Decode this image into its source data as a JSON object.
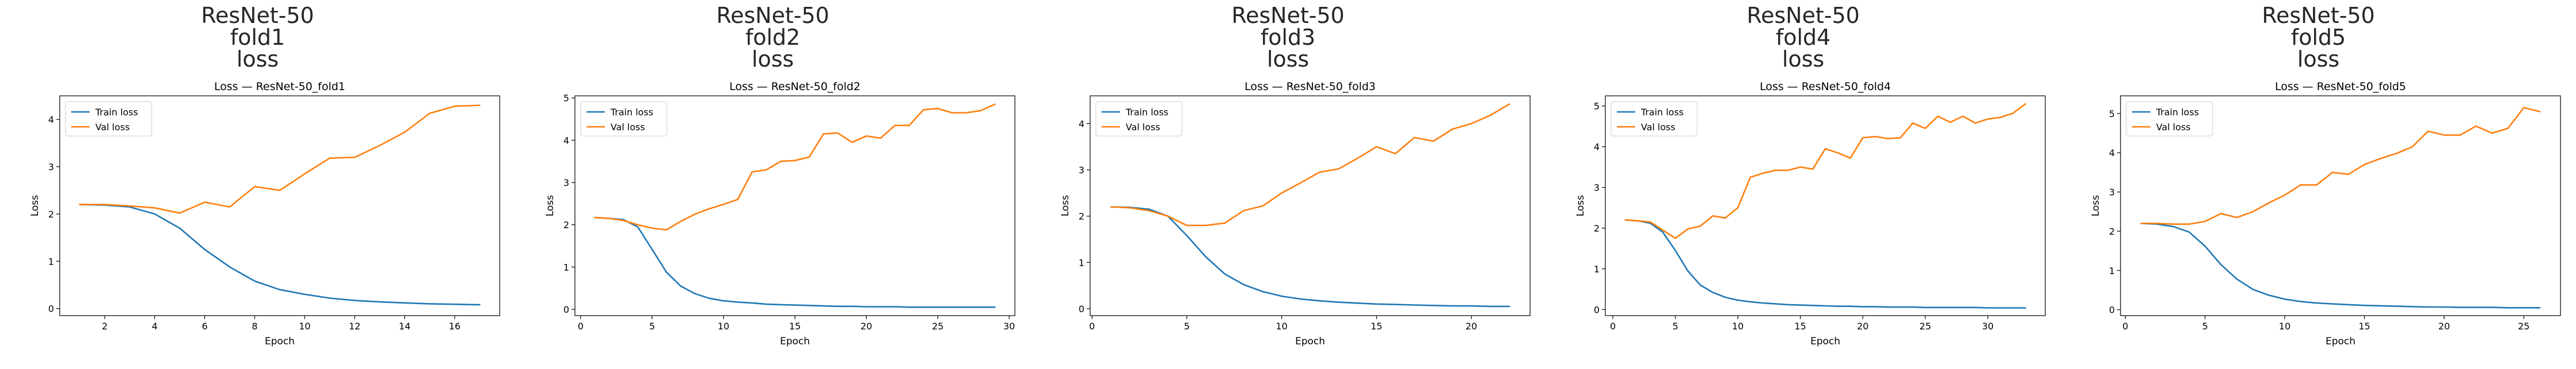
{
  "colors": {
    "train": "#1f77b4",
    "val": "#ff7f0e"
  },
  "chart_data": [
    {
      "type": "line",
      "suptitle": [
        "ResNet-50",
        "fold1",
        "loss"
      ],
      "title": "Loss — ResNet-50_fold1",
      "xlabel": "Epoch",
      "ylabel": "Loss",
      "xlim": [
        0.2,
        17.8
      ],
      "ylim": [
        -0.15,
        4.5
      ],
      "xticks": [
        2,
        4,
        6,
        8,
        10,
        12,
        14,
        16
      ],
      "yticks": [
        0,
        1,
        2,
        3,
        4
      ],
      "legend": "upper left",
      "series": [
        {
          "name": "Train loss",
          "color": "#1f77b4",
          "x": [
            1,
            2,
            3,
            4,
            5,
            6,
            7,
            8,
            9,
            10,
            11,
            12,
            13,
            14,
            15,
            16,
            17
          ],
          "y": [
            2.2,
            2.19,
            2.15,
            2.0,
            1.7,
            1.25,
            0.88,
            0.58,
            0.4,
            0.3,
            0.22,
            0.17,
            0.14,
            0.12,
            0.1,
            0.09,
            0.08
          ]
        },
        {
          "name": "Val loss",
          "color": "#ff7f0e",
          "x": [
            1,
            2,
            3,
            4,
            5,
            6,
            7,
            8,
            9,
            10,
            11,
            12,
            13,
            14,
            15,
            16,
            17
          ],
          "y": [
            2.2,
            2.2,
            2.17,
            2.13,
            2.02,
            2.25,
            2.15,
            2.58,
            2.5,
            2.85,
            3.18,
            3.2,
            3.45,
            3.73,
            4.13,
            4.28,
            4.3
          ]
        }
      ]
    },
    {
      "type": "line",
      "suptitle": [
        "ResNet-50",
        "fold2",
        "loss"
      ],
      "title": "Loss — ResNet-50_fold2",
      "xlabel": "Epoch",
      "ylabel": "Loss",
      "xlim": [
        -0.4,
        30.4
      ],
      "ylim": [
        -0.15,
        5.05
      ],
      "xticks": [
        0,
        5,
        10,
        15,
        20,
        25,
        30
      ],
      "yticks": [
        0,
        1,
        2,
        3,
        4,
        5
      ],
      "legend": "upper left",
      "series": [
        {
          "name": "Train loss",
          "color": "#1f77b4",
          "x": [
            1,
            2,
            3,
            4,
            5,
            6,
            7,
            8,
            9,
            10,
            11,
            12,
            13,
            14,
            15,
            16,
            17,
            18,
            19,
            20,
            21,
            22,
            23,
            24,
            25,
            26,
            27,
            28,
            29
          ],
          "y": [
            2.17,
            2.15,
            2.12,
            1.95,
            1.42,
            0.88,
            0.55,
            0.37,
            0.26,
            0.2,
            0.17,
            0.15,
            0.12,
            0.11,
            0.1,
            0.09,
            0.08,
            0.07,
            0.07,
            0.06,
            0.06,
            0.06,
            0.05,
            0.05,
            0.05,
            0.05,
            0.05,
            0.05,
            0.05
          ]
        },
        {
          "name": "Val loss",
          "color": "#ff7f0e",
          "x": [
            1,
            2,
            3,
            4,
            5,
            6,
            7,
            8,
            9,
            10,
            11,
            12,
            13,
            14,
            15,
            16,
            17,
            18,
            19,
            20,
            21,
            22,
            23,
            24,
            25,
            26,
            27,
            28,
            29
          ],
          "y": [
            2.17,
            2.15,
            2.1,
            2.0,
            1.92,
            1.88,
            2.08,
            2.25,
            2.38,
            2.48,
            2.6,
            3.25,
            3.3,
            3.5,
            3.52,
            3.6,
            4.15,
            4.17,
            3.95,
            4.1,
            4.05,
            4.35,
            4.35,
            4.72,
            4.75,
            4.65,
            4.65,
            4.7,
            4.85
          ]
        }
      ]
    },
    {
      "type": "line",
      "suptitle": [
        "ResNet-50",
        "fold3",
        "loss"
      ],
      "title": "Loss — ResNet-50_fold3",
      "xlabel": "Epoch",
      "ylabel": "Loss",
      "xlim": [
        -0.1,
        23.1
      ],
      "ylim": [
        -0.15,
        4.6
      ],
      "xticks": [
        0,
        5,
        10,
        15,
        20
      ],
      "yticks": [
        0,
        1,
        2,
        3,
        4
      ],
      "legend": "upper left",
      "series": [
        {
          "name": "Train loss",
          "color": "#1f77b4",
          "x": [
            1,
            2,
            3,
            4,
            5,
            6,
            7,
            8,
            9,
            10,
            11,
            12,
            13,
            14,
            15,
            16,
            17,
            18,
            19,
            20,
            21,
            22
          ],
          "y": [
            2.2,
            2.19,
            2.15,
            2.0,
            1.58,
            1.12,
            0.75,
            0.52,
            0.37,
            0.27,
            0.21,
            0.17,
            0.14,
            0.12,
            0.1,
            0.09,
            0.08,
            0.07,
            0.06,
            0.06,
            0.05,
            0.05
          ]
        },
        {
          "name": "Val loss",
          "color": "#ff7f0e",
          "x": [
            1,
            2,
            3,
            4,
            5,
            6,
            7,
            8,
            9,
            10,
            11,
            12,
            13,
            14,
            15,
            16,
            17,
            18,
            19,
            20,
            21,
            22
          ],
          "y": [
            2.2,
            2.18,
            2.12,
            2.0,
            1.8,
            1.8,
            1.85,
            2.12,
            2.22,
            2.5,
            2.72,
            2.95,
            3.02,
            3.25,
            3.5,
            3.35,
            3.7,
            3.62,
            3.88,
            4.0,
            4.18,
            4.42
          ]
        }
      ]
    },
    {
      "type": "line",
      "suptitle": [
        "ResNet-50",
        "fold4",
        "loss"
      ],
      "title": "Loss — ResNet-50_fold4",
      "xlabel": "Epoch",
      "ylabel": "Loss",
      "xlim": [
        -0.6,
        34.6
      ],
      "ylim": [
        -0.15,
        5.25
      ],
      "xticks": [
        0,
        5,
        10,
        15,
        20,
        25,
        30
      ],
      "yticks": [
        0,
        1,
        2,
        3,
        4,
        5
      ],
      "legend": "upper left",
      "series": [
        {
          "name": "Train loss",
          "color": "#1f77b4",
          "x": [
            1,
            2,
            3,
            4,
            5,
            6,
            7,
            8,
            9,
            10,
            11,
            12,
            13,
            14,
            15,
            16,
            17,
            18,
            19,
            20,
            21,
            22,
            23,
            24,
            25,
            26,
            27,
            28,
            29,
            30,
            31,
            32,
            33
          ],
          "y": [
            2.2,
            2.18,
            2.12,
            1.9,
            1.45,
            0.95,
            0.6,
            0.42,
            0.3,
            0.23,
            0.19,
            0.16,
            0.14,
            0.12,
            0.11,
            0.1,
            0.09,
            0.08,
            0.08,
            0.07,
            0.07,
            0.06,
            0.06,
            0.06,
            0.05,
            0.05,
            0.05,
            0.05,
            0.05,
            0.04,
            0.04,
            0.04,
            0.04
          ]
        },
        {
          "name": "Val loss",
          "color": "#ff7f0e",
          "x": [
            1,
            2,
            3,
            4,
            5,
            6,
            7,
            8,
            9,
            10,
            11,
            12,
            13,
            14,
            15,
            16,
            17,
            18,
            19,
            20,
            21,
            22,
            23,
            24,
            25,
            26,
            27,
            28,
            29,
            30,
            31,
            32,
            33
          ],
          "y": [
            2.2,
            2.18,
            2.15,
            1.95,
            1.75,
            1.98,
            2.05,
            2.3,
            2.25,
            2.5,
            3.25,
            3.35,
            3.42,
            3.42,
            3.5,
            3.45,
            3.95,
            3.85,
            3.72,
            4.22,
            4.25,
            4.2,
            4.22,
            4.58,
            4.45,
            4.75,
            4.6,
            4.75,
            4.58,
            4.68,
            4.72,
            4.82,
            5.05
          ]
        }
      ]
    },
    {
      "type": "line",
      "suptitle": [
        "ResNet-50",
        "fold5",
        "loss"
      ],
      "title": "Loss — ResNet-50_fold5",
      "xlabel": "Epoch",
      "ylabel": "Loss",
      "xlim": [
        -0.3,
        27.3
      ],
      "ylim": [
        -0.15,
        5.45
      ],
      "xticks": [
        0,
        5,
        10,
        15,
        20,
        25
      ],
      "yticks": [
        0,
        1,
        2,
        3,
        4,
        5
      ],
      "legend": "upper left",
      "series": [
        {
          "name": "Train loss",
          "color": "#1f77b4",
          "x": [
            1,
            2,
            3,
            4,
            5,
            6,
            7,
            8,
            9,
            10,
            11,
            12,
            13,
            14,
            15,
            16,
            17,
            18,
            19,
            20,
            21,
            22,
            23,
            24,
            25,
            26
          ],
          "y": [
            2.2,
            2.18,
            2.12,
            1.98,
            1.62,
            1.15,
            0.78,
            0.52,
            0.37,
            0.27,
            0.21,
            0.17,
            0.15,
            0.13,
            0.11,
            0.1,
            0.09,
            0.08,
            0.07,
            0.07,
            0.06,
            0.06,
            0.06,
            0.05,
            0.05,
            0.05
          ]
        },
        {
          "name": "Val loss",
          "color": "#ff7f0e",
          "x": [
            1,
            2,
            3,
            4,
            5,
            6,
            7,
            8,
            9,
            10,
            11,
            12,
            13,
            14,
            15,
            16,
            17,
            18,
            19,
            20,
            21,
            22,
            23,
            24,
            25,
            26
          ],
          "y": [
            2.2,
            2.2,
            2.18,
            2.18,
            2.25,
            2.45,
            2.35,
            2.5,
            2.72,
            2.92,
            3.18,
            3.18,
            3.5,
            3.45,
            3.7,
            3.85,
            3.98,
            4.15,
            4.55,
            4.45,
            4.45,
            4.68,
            4.5,
            4.62,
            5.15,
            5.05
          ]
        }
      ]
    }
  ]
}
